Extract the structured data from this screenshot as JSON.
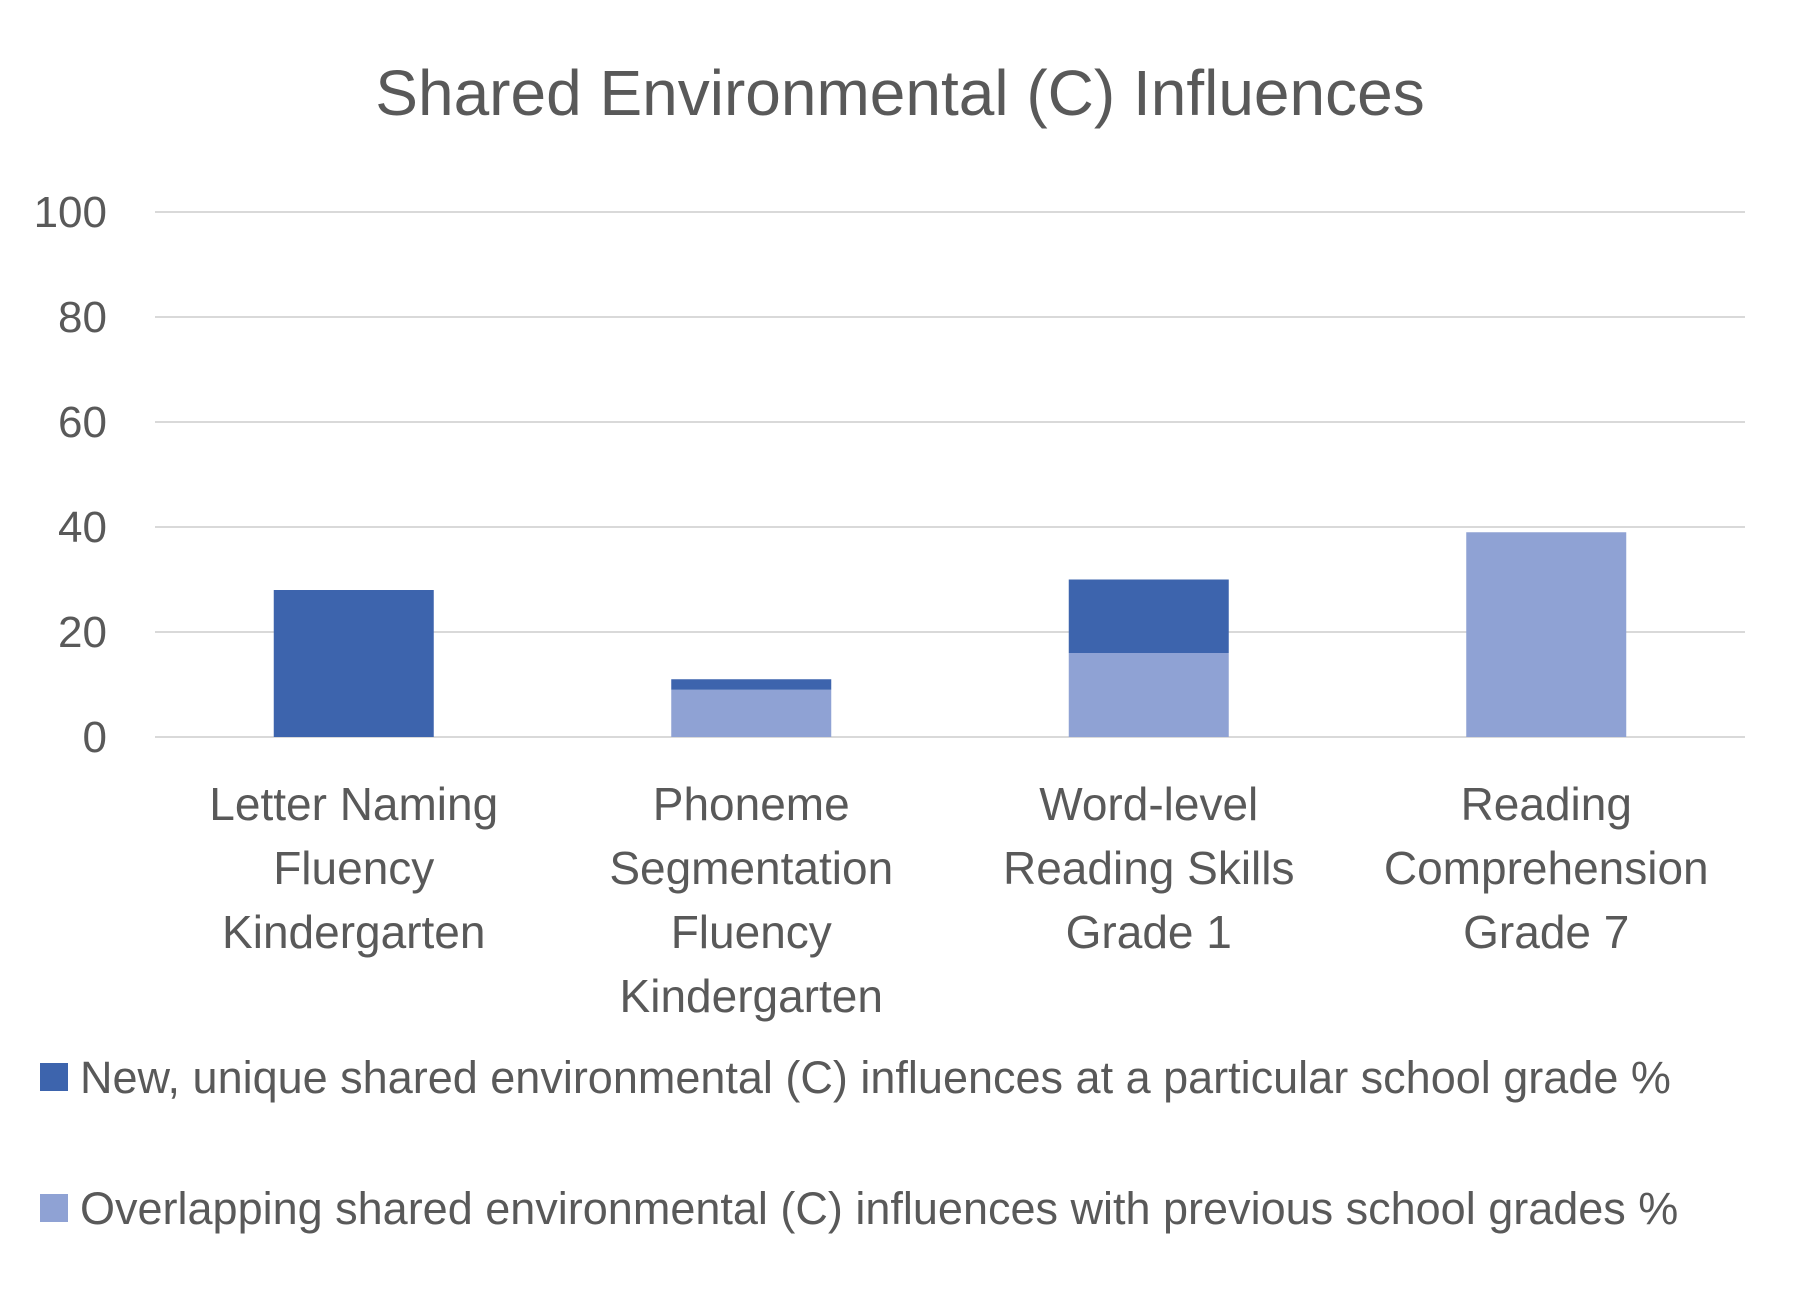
{
  "chart_data": {
    "type": "bar",
    "stacked": true,
    "title": "Shared Environmental (C) Influences",
    "xlabel": "",
    "ylabel": "",
    "ylim": [
      0,
      100
    ],
    "yticks": [
      "0",
      "20",
      "40",
      "60",
      "80",
      "100"
    ],
    "grid": true,
    "legend_position": "bottom",
    "categories": [
      [
        "Letter Naming",
        "Fluency",
        "Kindergarten"
      ],
      [
        "Phoneme",
        "Segmentation",
        "Fluency",
        "Kindergarten"
      ],
      [
        "Word-level",
        "Reading Skills",
        "Grade 1"
      ],
      [
        "Reading",
        "Comprehension",
        "Grade 7"
      ]
    ],
    "series": [
      {
        "name": "Overlapping shared environmental (C) influences with previous school grades %",
        "color": "#8FA2D4",
        "values": [
          0,
          9,
          16,
          39
        ]
      },
      {
        "name": "New, unique shared environmental (C) influences at a particular school grade %",
        "color": "#3D64AD",
        "values": [
          28,
          2,
          14,
          0
        ]
      }
    ],
    "legend_order": [
      1,
      0
    ]
  }
}
